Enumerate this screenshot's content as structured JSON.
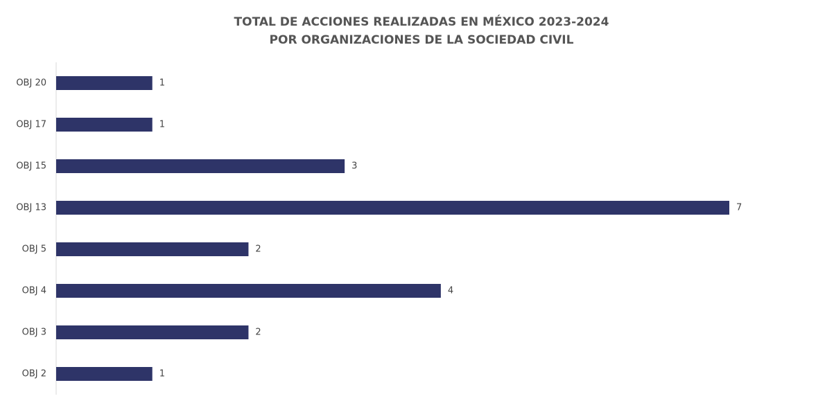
{
  "chart_data": {
    "type": "bar",
    "orientation": "horizontal",
    "title": [
      "TOTAL DE ACCIONES REALIZADAS EN MÉXICO 2023-2024",
      "POR ORGANIZACIONES DE LA SOCIEDAD CIVIL"
    ],
    "categories": [
      "OBJ 20",
      "OBJ 17",
      "OBJ 15",
      "OBJ 13",
      "OBJ 5",
      "OBJ 4",
      "OBJ 3",
      "OBJ 2"
    ],
    "values": [
      1,
      1,
      3,
      7,
      2,
      4,
      2,
      1
    ],
    "color": "#2e3468"
  }
}
